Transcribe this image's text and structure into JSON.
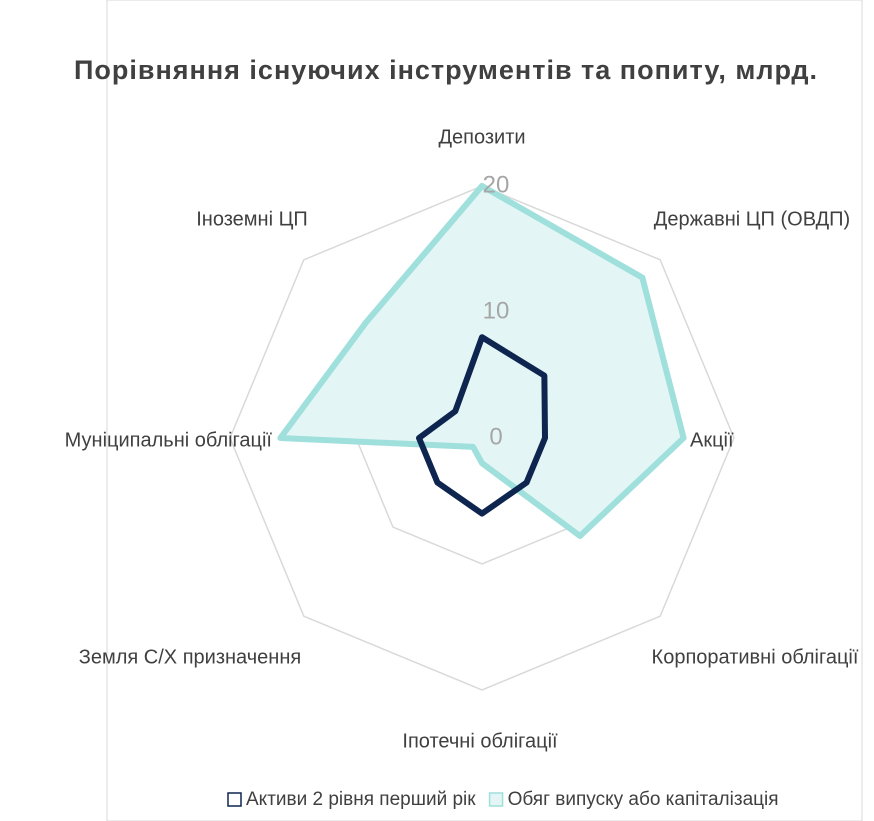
{
  "chart_data": {
    "type": "radar",
    "title": "Порівняння існуючих інструментів та попиту, млрд.",
    "categories": [
      "Депозити",
      "Державні ЦП (ОВДП)",
      "Акції",
      "Корпоративні облігації",
      "Іпотечні облігації",
      "Земля С/Х призначення",
      "Муніципальні облігації",
      "Іноземні ЦП"
    ],
    "series": [
      {
        "name": "Активи 2 рівня перший рік",
        "color": "#0e2550",
        "values": [
          8,
          7,
          5,
          5,
          6,
          5,
          5,
          3
        ]
      },
      {
        "name": "Обяг випуску або капіталізація",
        "color": "#9fdfdc",
        "values": [
          20,
          18,
          16,
          11,
          2,
          1,
          16,
          13
        ]
      }
    ],
    "ylim": [
      0,
      20
    ],
    "yticks": [
      0,
      10,
      20
    ],
    "grid": true,
    "legend": "bottom"
  }
}
